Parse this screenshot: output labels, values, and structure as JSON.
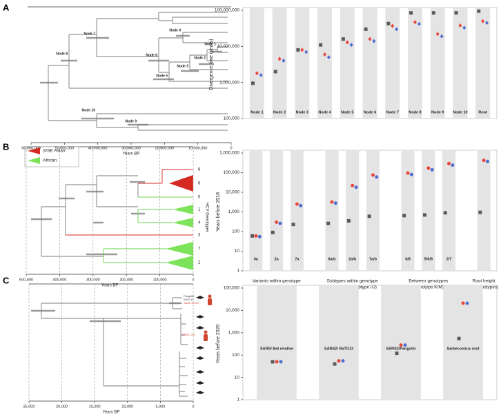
{
  "chart_data": [
    {
      "type": "tree",
      "label": "A",
      "xlabel": "Years BP",
      "xlim": [
        60000000,
        0
      ],
      "xticks": [
        {
          "value": 60000000,
          "label": "60,000,000"
        },
        {
          "value": 50000000,
          "label": "50,000,000"
        },
        {
          "value": 40000000,
          "label": "40,000,000"
        },
        {
          "value": 30000000,
          "label": "30,000,000"
        },
        {
          "value": 20000000,
          "label": "20,000,000"
        },
        {
          "value": 10000000,
          "label": "10,000,000"
        },
        0
      ],
      "grid": false,
      "node_labels": [
        "Node 1",
        "Node 2",
        "Node 3",
        "Node 4",
        "Node 5",
        "Node 6",
        "Node 7",
        "Node 8",
        "Node 9",
        "Node 10"
      ]
    },
    {
      "type": "dot",
      "ylabel": "Divergence time (years)",
      "log": true,
      "ylim": [
        100000,
        100000000
      ],
      "yticks": [
        {
          "value": 100000,
          "label": "100,000"
        },
        {
          "value": 1000000,
          "label": "1,000,000"
        },
        {
          "value": 10000000,
          "label": "10,000,000"
        },
        {
          "value": 100000000,
          "label": "100,000,000"
        }
      ],
      "categories": [
        "Node 1",
        "Node 2",
        "Node 3",
        "Node 4",
        "Node 5",
        "Node 6",
        "Node 7",
        "Node 8",
        "Node 9",
        "Node 10",
        "Root"
      ],
      "series": [
        {
          "color": "#5a5a5a",
          "marker": "square",
          "values": [
            950000,
            2000000,
            8000000,
            11000000,
            16000000,
            30000000,
            43000000,
            85000000,
            85000000,
            85000000,
            95000000
          ]
        },
        {
          "color": "#e8453c",
          "marker": "diamond",
          "values": [
            1800000,
            4500000,
            8000000,
            6000000,
            13000000,
            16000000,
            37000000,
            47000000,
            22000000,
            38000000,
            50000000
          ]
        },
        {
          "color": "#4f6fd0",
          "marker": "diamond",
          "values": [
            1600000,
            4000000,
            7000000,
            5000000,
            11000000,
            14000000,
            30000000,
            42000000,
            19000000,
            33000000,
            45000000
          ]
        }
      ]
    },
    {
      "type": "tree",
      "label": "B",
      "xlabel": "Years BP",
      "ylabel": "HCV Genotypes",
      "xlim": [
        500000,
        0
      ],
      "xticks": [
        {
          "value": 500000,
          "label": "500,000"
        },
        {
          "value": 400000,
          "label": "400,000"
        },
        {
          "value": 300000,
          "label": "300,000"
        },
        {
          "value": 200000,
          "label": "200,000"
        },
        {
          "value": 100000,
          "label": "100,000"
        },
        0
      ],
      "grid": true,
      "legend": [
        {
          "name": "S/SE Asian",
          "color": "#d42a22"
        },
        {
          "name": "African",
          "color": "#7de35a"
        }
      ],
      "node_labels": [
        "8",
        "6",
        "5",
        "1",
        "4",
        "3",
        "7",
        "2"
      ]
    },
    {
      "type": "dot",
      "ylabel": "Years before 2018",
      "log": true,
      "ylim": [
        1,
        1000000
      ],
      "yticks": [
        1,
        10,
        100,
        {
          "value": 1000,
          "label": "1,000"
        },
        {
          "value": 10000,
          "label": "10,000"
        },
        {
          "value": 100000,
          "label": "100,000"
        },
        {
          "value": 1000000,
          "label": "1,000,000"
        }
      ],
      "groups": [
        {
          "label_lines": [
            "Variants within genotype"
          ],
          "categories": [
            "6a",
            "2a",
            "7a"
          ]
        },
        {
          "label_lines": [
            "Subtypes within genotype",
            "(genotype K subtype I/J)"
          ],
          "categories": [
            "6a/b",
            "2a/b",
            "7a/b"
          ]
        },
        {
          "label_lines": [
            "Between genotypes",
            "(genotype K/M)"
          ],
          "categories": [
            "6/8",
            "5/6/8",
            "2/7"
          ]
        },
        {
          "label_lines": [
            "Root height",
            "(all genotypes)"
          ],
          "categories": [
            null
          ]
        }
      ],
      "series": [
        {
          "color": "#5a5a5a",
          "marker": "square",
          "values": [
            60,
            90,
            230,
            260,
            350,
            600,
            650,
            700,
            900,
            950
          ]
        },
        {
          "color": "#e8453c",
          "marker": "circle",
          "values": [
            60,
            300,
            2500,
            3200,
            22000,
            75000,
            95000,
            170000,
            290000,
            420000
          ]
        },
        {
          "color": "#4f6fd0",
          "marker": "circle",
          "values": [
            55,
            260,
            2100,
            2800,
            18000,
            60000,
            80000,
            140000,
            240000,
            370000
          ]
        }
      ]
    },
    {
      "type": "tree",
      "label": "C",
      "xlabel": "Years BP",
      "xlim": [
        25000,
        0
      ],
      "xticks": [
        {
          "value": 25000,
          "label": "25,000"
        },
        {
          "value": 20000,
          "label": "20,000"
        },
        {
          "value": 15000,
          "label": "15,000"
        },
        {
          "value": 10000,
          "label": "10,000"
        },
        {
          "value": 5000,
          "label": "5,000"
        },
        0
      ],
      "grid": true,
      "node_labels": [
        "Pangolin",
        "RaTG13",
        "SARS-CoV-2",
        "SARS-CoV"
      ]
    },
    {
      "type": "dot",
      "ylabel": "Years before 2020",
      "log": true,
      "ylim": [
        1,
        100000
      ],
      "yticks": [
        1,
        10,
        100,
        {
          "value": 1000,
          "label": "1,000"
        },
        {
          "value": 10000,
          "label": "10,000"
        },
        {
          "value": 100000,
          "label": "100,000"
        }
      ],
      "categories": [
        "SARS/ Bat relative",
        "SARS2/ RaTG13",
        "SARS2/Pangolin",
        "Sarbecovirus root"
      ],
      "series": [
        {
          "color": "#5a5a5a",
          "marker": "square",
          "values": [
            50,
            40,
            120,
            550
          ]
        },
        {
          "color": "#e8453c",
          "marker": "circle",
          "values": [
            50,
            55,
            280,
            21000
          ]
        },
        {
          "color": "#4f6fd0",
          "marker": "circle",
          "values": [
            50,
            55,
            280,
            21000
          ]
        }
      ]
    }
  ]
}
